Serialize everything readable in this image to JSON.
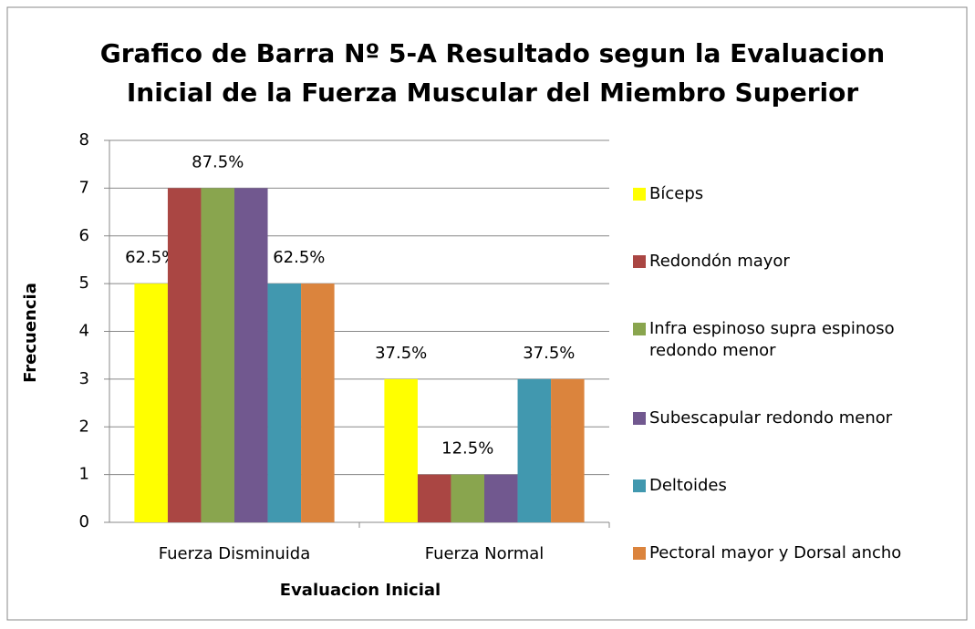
{
  "chart_data": {
    "type": "bar",
    "title": "Grafico de Barra Nº 5-A Resultado segun la Evaluacion Inicial de la Fuerza Muscular del Miembro Superior",
    "x_label": "Evaluacion Inicial",
    "y_label": "Frecuencia",
    "categories": [
      "Fuerza Disminuida",
      "Fuerza Normal"
    ],
    "series": [
      {
        "name": "Bíceps",
        "color": "#ffff00",
        "values": [
          5,
          3
        ],
        "value_labels": [
          "62.5%",
          "37.5%"
        ]
      },
      {
        "name": "Redondón mayor",
        "color": "#aa4643",
        "values": [
          7,
          1
        ]
      },
      {
        "name": "Infra espinoso supra espinoso redondo menor",
        "color": "#89a54e",
        "values": [
          7,
          1
        ],
        "value_labels": [
          "87.5%",
          "12.5%"
        ]
      },
      {
        "name": "Subescapular redondo menor",
        "color": "#71588f",
        "values": [
          7,
          1
        ]
      },
      {
        "name": "Deltoides",
        "color": "#4198af",
        "values": [
          5,
          3
        ],
        "value_labels": [
          "62.5%",
          "37.5%"
        ]
      },
      {
        "name": "Pectoral mayor y Dorsal ancho",
        "color": "#db843d",
        "values": [
          5,
          3
        ]
      }
    ],
    "ylim": [
      0,
      8
    ],
    "yticks": [
      0,
      1,
      2,
      3,
      4,
      5,
      6,
      7,
      8
    ],
    "grid": true,
    "legend": "right"
  }
}
